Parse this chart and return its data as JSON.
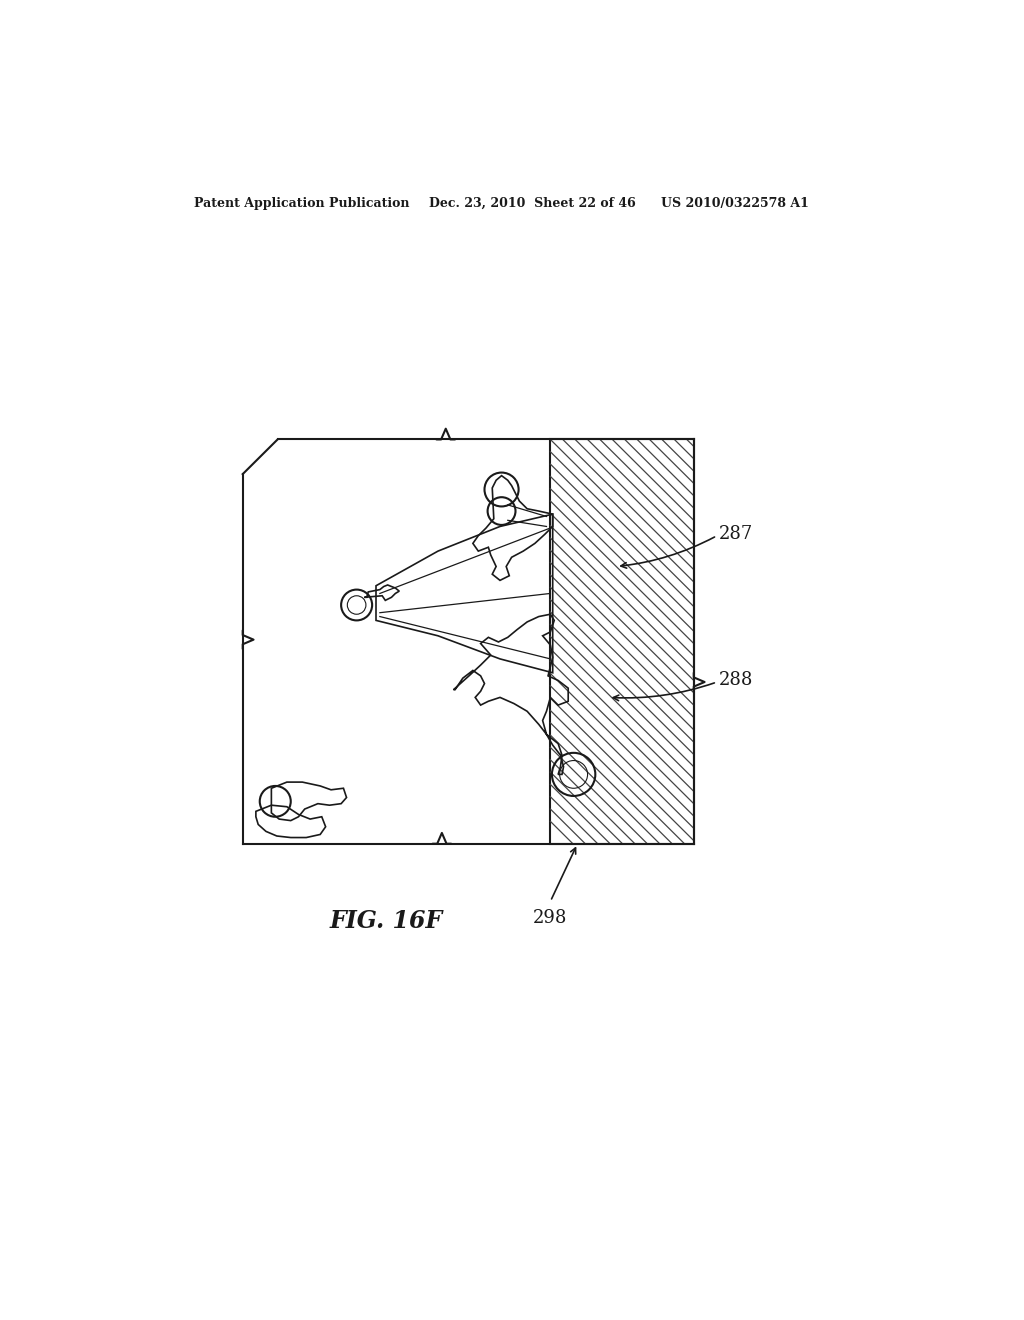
{
  "background_color": "#ffffff",
  "header_left": "Patent Application Publication",
  "header_center": "Dec. 23, 2010  Sheet 22 of 46",
  "header_right": "US 2010/0322578 A1",
  "figure_label": "FIG. 16F",
  "label_287": "287",
  "label_288": "288",
  "label_298": "298",
  "line_color": "#1a1a1a",
  "hatch_color": "#444444"
}
